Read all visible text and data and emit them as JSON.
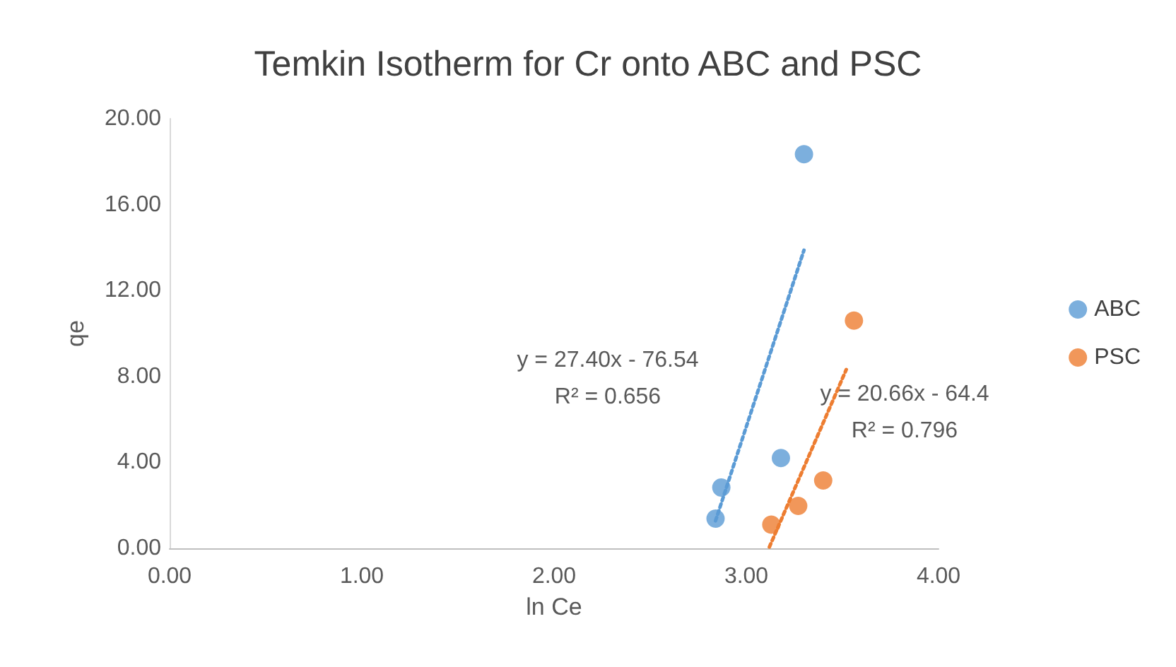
{
  "chart_data": {
    "type": "scatter",
    "title": "Temkin Isotherm for Cr onto ABC and PSC",
    "xlabel": "ln Ce",
    "ylabel": "qe",
    "series": [
      {
        "name": "ABC",
        "color": "#5b9bd5",
        "x": [
          2.84,
          2.87,
          3.18,
          3.3
        ],
        "values": [
          1.38,
          2.83,
          4.2,
          18.35
        ]
      },
      {
        "name": "PSC",
        "color": "#ed7d31",
        "x": [
          3.13,
          3.27,
          3.4,
          3.56
        ],
        "values": [
          1.1,
          1.97,
          3.16,
          10.6
        ]
      },
      {
        "type": "line",
        "color": "#5b9bd5",
        "line_style": "dotted",
        "marker": "none",
        "x": [
          2.84,
          3.3
        ],
        "values": [
          1.28,
          13.88
        ]
      },
      {
        "type": "line",
        "color": "#ed7d31",
        "line_style": "dotted",
        "marker": "none",
        "x": [
          3.12,
          3.52
        ],
        "values": [
          0.06,
          8.32
        ]
      }
    ],
    "xlim": [
      0,
      4
    ],
    "xticks": [
      {
        "value": 0,
        "label": "0.00"
      },
      {
        "value": 1,
        "label": "1.00"
      },
      {
        "value": 2,
        "label": "2.00"
      },
      {
        "value": 3,
        "label": "3.00"
      },
      {
        "value": 4,
        "label": "4.00"
      }
    ],
    "ylim": [
      0,
      20
    ],
    "yticks": [
      {
        "value": 0,
        "label": "0.00"
      },
      {
        "value": 4,
        "label": "4.00"
      },
      {
        "value": 8,
        "label": "8.00"
      },
      {
        "value": 12,
        "label": "12.00"
      },
      {
        "value": 16,
        "label": "16.00"
      },
      {
        "value": 20,
        "label": "20.00"
      }
    ],
    "annotations": [
      "y = 27.40x - 76.54\nR² = 0.656",
      "y = 20.66x - 64.4\nR² = 0.796"
    ],
    "marker": "circle",
    "grid": false,
    "legend": "right"
  }
}
